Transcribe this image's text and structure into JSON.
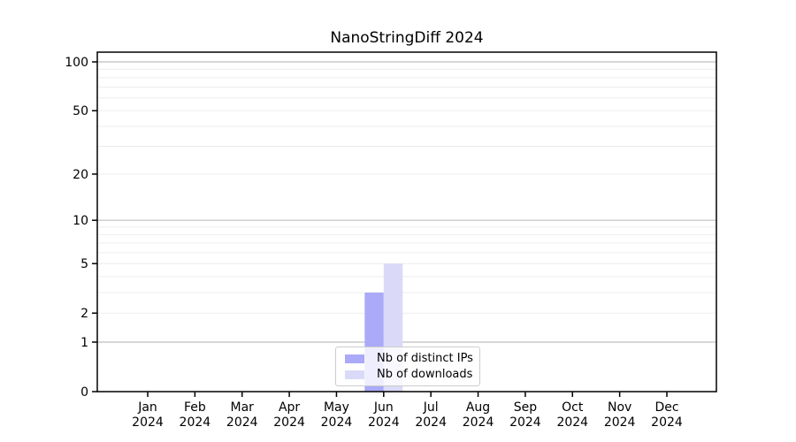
{
  "chart_data": {
    "type": "bar",
    "title": "NanoStringDiff 2024",
    "categories": [
      "Jan 2024",
      "Feb 2024",
      "Mar 2024",
      "Apr 2024",
      "May 2024",
      "Jun 2024",
      "Jul 2024",
      "Aug 2024",
      "Sep 2024",
      "Oct 2024",
      "Nov 2024",
      "Dec 2024"
    ],
    "series": [
      {
        "name": "Nb of distinct IPs",
        "color": "#aaaaf8",
        "values": [
          0,
          0,
          0,
          0,
          0,
          3,
          0,
          0,
          0,
          0,
          0,
          0
        ]
      },
      {
        "name": "Nb of downloads",
        "color": "#dadaf8",
        "values": [
          0,
          0,
          0,
          0,
          0,
          5,
          0,
          0,
          0,
          0,
          0,
          0
        ]
      }
    ],
    "xlabel": "",
    "ylabel": "",
    "y_scale": "log1p",
    "y_tick_labels": [
      0,
      1,
      2,
      5,
      10,
      20,
      50,
      100
    ],
    "major_grid_values": [
      1,
      10,
      100
    ],
    "minor_grid_values": [
      2,
      3,
      4,
      5,
      6,
      7,
      8,
      9,
      20,
      30,
      40,
      50,
      60,
      70,
      80,
      90
    ],
    "ylim": [
      0,
      115
    ],
    "grid": "horizontal",
    "legend_position": "lower center"
  },
  "colors": {
    "background": "#ffffff",
    "bar_distinct_ips": "#aaaaf8",
    "bar_downloads": "#dadaf8",
    "major_gridline": "#bfbfbf",
    "minor_gridline": "#ededed",
    "axis": "#000000",
    "legend_border": "#cccccc"
  }
}
